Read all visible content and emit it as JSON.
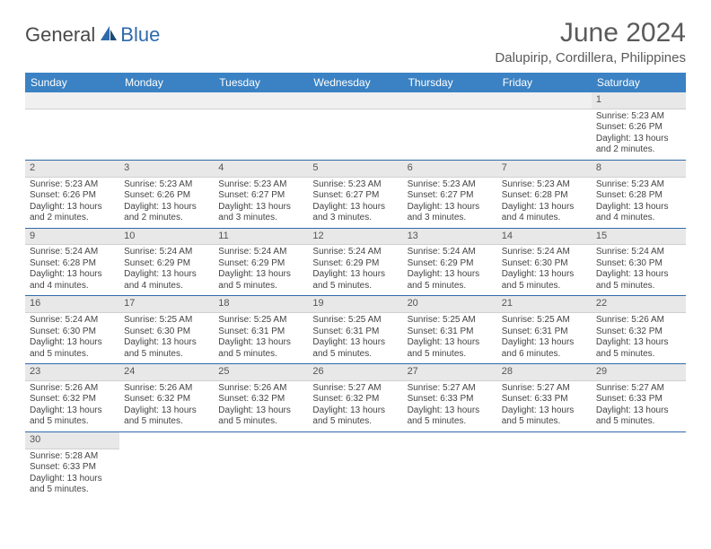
{
  "logo": {
    "part1": "General",
    "part2": "Blue"
  },
  "title": "June 2024",
  "location": "Dalupirip, Cordillera, Philippines",
  "header_bg": "#3b82c4",
  "weekdays": [
    "Sunday",
    "Monday",
    "Tuesday",
    "Wednesday",
    "Thursday",
    "Friday",
    "Saturday"
  ],
  "weeks": [
    [
      null,
      null,
      null,
      null,
      null,
      null,
      {
        "d": "1",
        "rise": "5:23 AM",
        "set": "6:26 PM",
        "dl": "13 hours and 2 minutes."
      }
    ],
    [
      {
        "d": "2",
        "rise": "5:23 AM",
        "set": "6:26 PM",
        "dl": "13 hours and 2 minutes."
      },
      {
        "d": "3",
        "rise": "5:23 AM",
        "set": "6:26 PM",
        "dl": "13 hours and 2 minutes."
      },
      {
        "d": "4",
        "rise": "5:23 AM",
        "set": "6:27 PM",
        "dl": "13 hours and 3 minutes."
      },
      {
        "d": "5",
        "rise": "5:23 AM",
        "set": "6:27 PM",
        "dl": "13 hours and 3 minutes."
      },
      {
        "d": "6",
        "rise": "5:23 AM",
        "set": "6:27 PM",
        "dl": "13 hours and 3 minutes."
      },
      {
        "d": "7",
        "rise": "5:23 AM",
        "set": "6:28 PM",
        "dl": "13 hours and 4 minutes."
      },
      {
        "d": "8",
        "rise": "5:23 AM",
        "set": "6:28 PM",
        "dl": "13 hours and 4 minutes."
      }
    ],
    [
      {
        "d": "9",
        "rise": "5:24 AM",
        "set": "6:28 PM",
        "dl": "13 hours and 4 minutes."
      },
      {
        "d": "10",
        "rise": "5:24 AM",
        "set": "6:29 PM",
        "dl": "13 hours and 4 minutes."
      },
      {
        "d": "11",
        "rise": "5:24 AM",
        "set": "6:29 PM",
        "dl": "13 hours and 5 minutes."
      },
      {
        "d": "12",
        "rise": "5:24 AM",
        "set": "6:29 PM",
        "dl": "13 hours and 5 minutes."
      },
      {
        "d": "13",
        "rise": "5:24 AM",
        "set": "6:29 PM",
        "dl": "13 hours and 5 minutes."
      },
      {
        "d": "14",
        "rise": "5:24 AM",
        "set": "6:30 PM",
        "dl": "13 hours and 5 minutes."
      },
      {
        "d": "15",
        "rise": "5:24 AM",
        "set": "6:30 PM",
        "dl": "13 hours and 5 minutes."
      }
    ],
    [
      {
        "d": "16",
        "rise": "5:24 AM",
        "set": "6:30 PM",
        "dl": "13 hours and 5 minutes."
      },
      {
        "d": "17",
        "rise": "5:25 AM",
        "set": "6:30 PM",
        "dl": "13 hours and 5 minutes."
      },
      {
        "d": "18",
        "rise": "5:25 AM",
        "set": "6:31 PM",
        "dl": "13 hours and 5 minutes."
      },
      {
        "d": "19",
        "rise": "5:25 AM",
        "set": "6:31 PM",
        "dl": "13 hours and 5 minutes."
      },
      {
        "d": "20",
        "rise": "5:25 AM",
        "set": "6:31 PM",
        "dl": "13 hours and 5 minutes."
      },
      {
        "d": "21",
        "rise": "5:25 AM",
        "set": "6:31 PM",
        "dl": "13 hours and 6 minutes."
      },
      {
        "d": "22",
        "rise": "5:26 AM",
        "set": "6:32 PM",
        "dl": "13 hours and 5 minutes."
      }
    ],
    [
      {
        "d": "23",
        "rise": "5:26 AM",
        "set": "6:32 PM",
        "dl": "13 hours and 5 minutes."
      },
      {
        "d": "24",
        "rise": "5:26 AM",
        "set": "6:32 PM",
        "dl": "13 hours and 5 minutes."
      },
      {
        "d": "25",
        "rise": "5:26 AM",
        "set": "6:32 PM",
        "dl": "13 hours and 5 minutes."
      },
      {
        "d": "26",
        "rise": "5:27 AM",
        "set": "6:32 PM",
        "dl": "13 hours and 5 minutes."
      },
      {
        "d": "27",
        "rise": "5:27 AM",
        "set": "6:33 PM",
        "dl": "13 hours and 5 minutes."
      },
      {
        "d": "28",
        "rise": "5:27 AM",
        "set": "6:33 PM",
        "dl": "13 hours and 5 minutes."
      },
      {
        "d": "29",
        "rise": "5:27 AM",
        "set": "6:33 PM",
        "dl": "13 hours and 5 minutes."
      }
    ],
    [
      {
        "d": "30",
        "rise": "5:28 AM",
        "set": "6:33 PM",
        "dl": "13 hours and 5 minutes."
      },
      null,
      null,
      null,
      null,
      null,
      null
    ]
  ],
  "labels": {
    "sunrise": "Sunrise:",
    "sunset": "Sunset:",
    "daylight": "Daylight:"
  }
}
